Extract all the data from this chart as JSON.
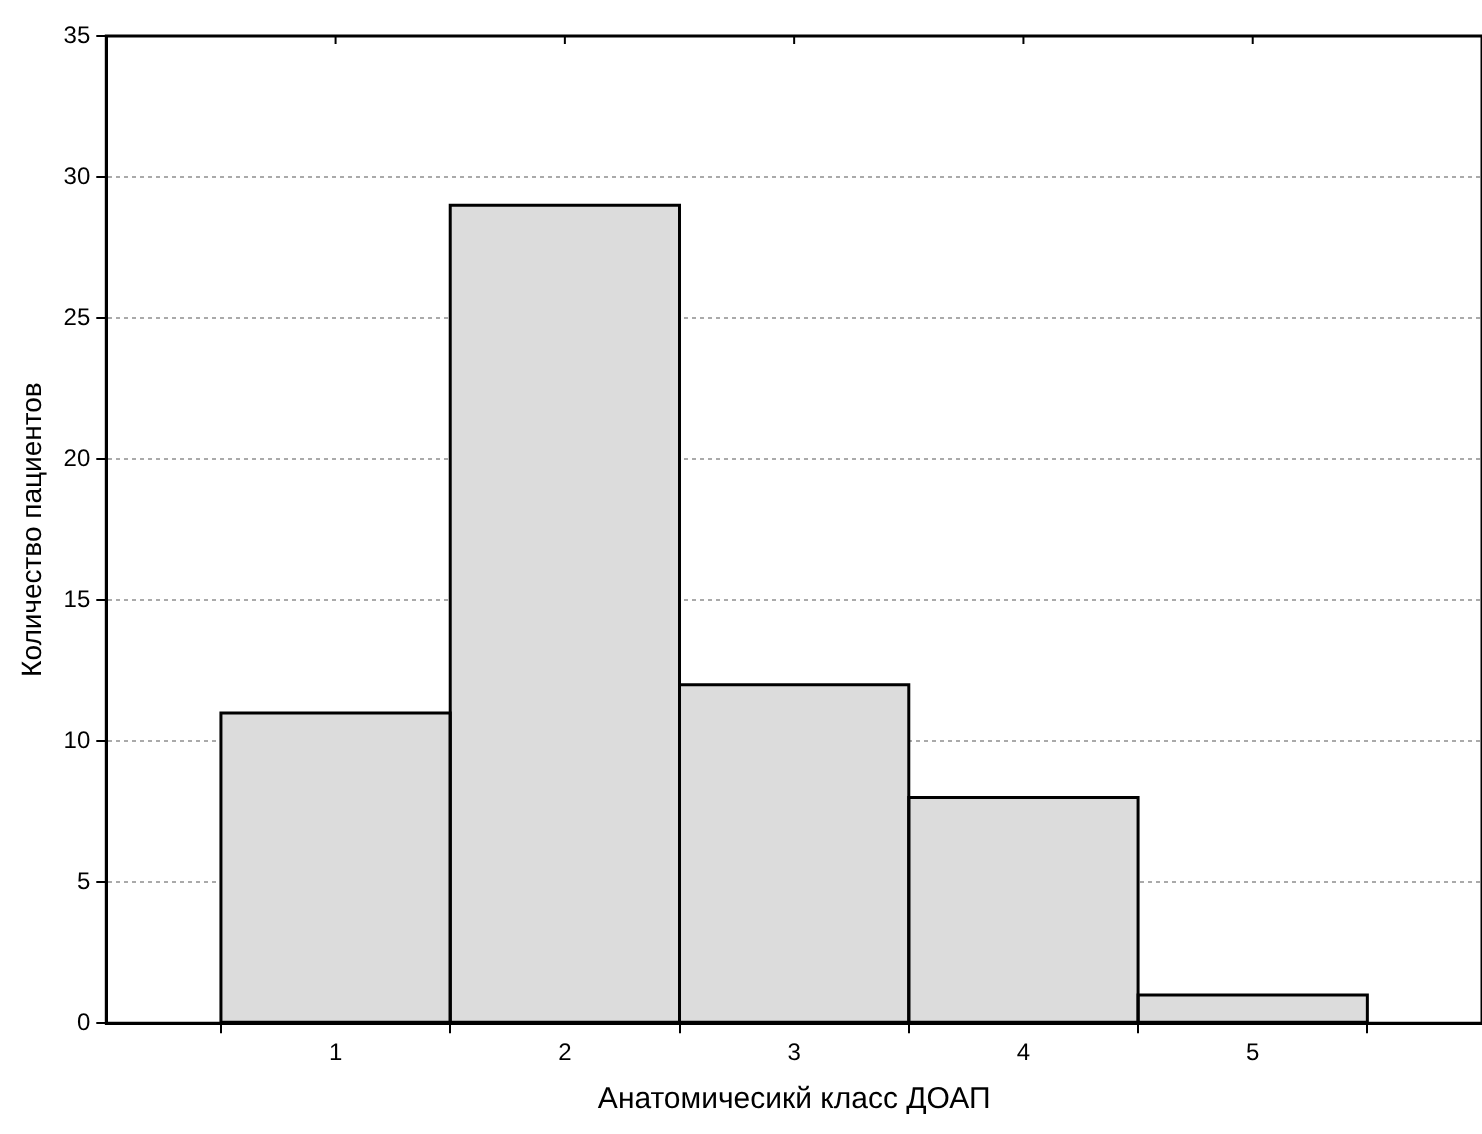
{
  "chart_data": {
    "type": "histogram",
    "xlabel": "Анатомичесикй класс ДОАП",
    "ylabel": "Количество пациентов",
    "bins": [
      0.5,
      1.5,
      2.5,
      3.5,
      4.5,
      5.5
    ],
    "values": [
      11,
      29,
      12,
      8,
      1
    ],
    "color": "#dcdcdc",
    "xlim": [
      0,
      6
    ],
    "xticks": [
      1,
      2,
      3,
      4,
      5
    ],
    "ylim": [
      0,
      35
    ],
    "yticks": [
      0,
      5,
      10,
      15,
      20,
      25,
      30,
      35
    ],
    "grid": "y"
  }
}
